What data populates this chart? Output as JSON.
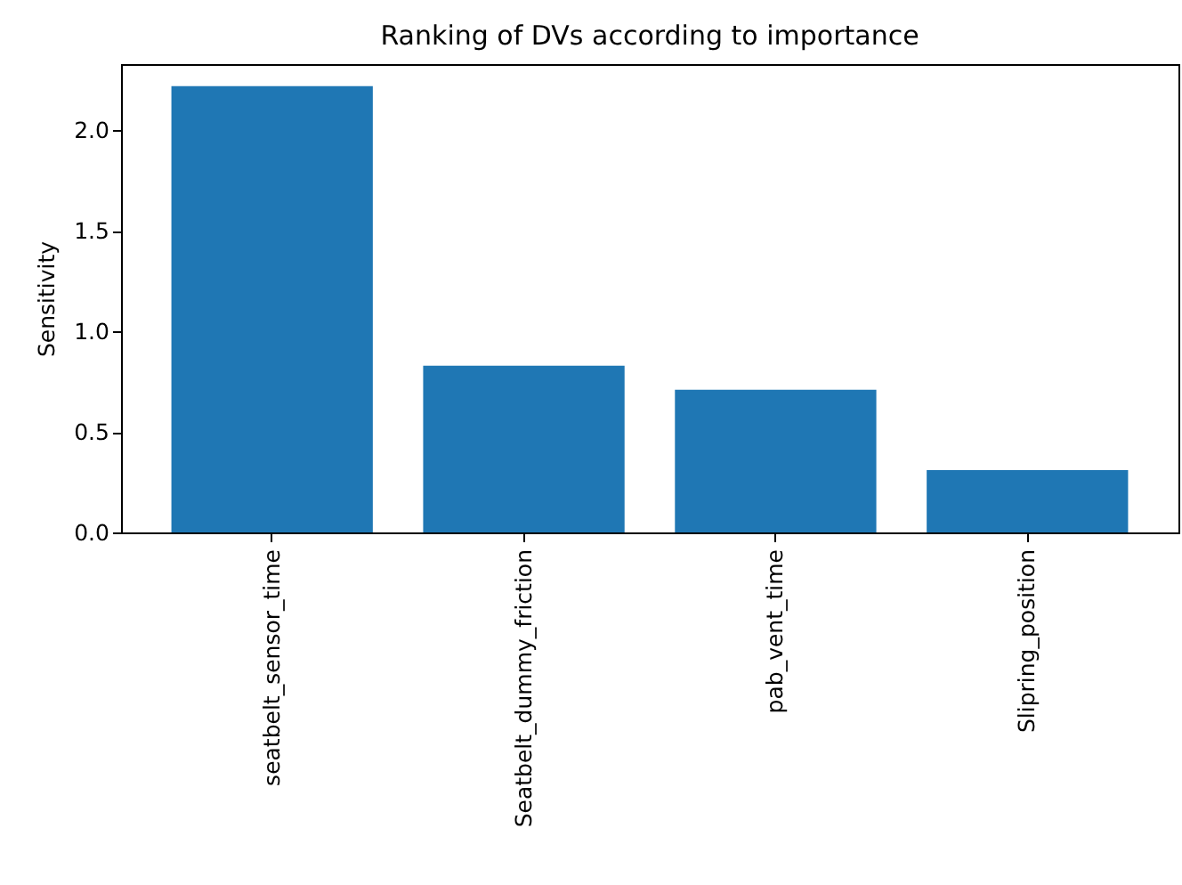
{
  "chart_data": {
    "type": "bar",
    "title": "Ranking of DVs according to importance",
    "ylabel": "Sensitivity",
    "categories": [
      "seatbelt_sensor_time",
      "Seatbelt_dummy_friction",
      "pab_vent_time",
      "Slipring_position"
    ],
    "values": [
      2.22,
      0.83,
      0.71,
      0.31
    ],
    "color": "#1f77b4",
    "ylim": [
      0,
      2.33
    ],
    "yticks": [
      {
        "value": 0,
        "label": "0.0"
      },
      {
        "value": 0.5,
        "label": "0.5"
      },
      {
        "value": 1,
        "label": "1.0"
      },
      {
        "value": 1.5,
        "label": "1.5"
      },
      {
        "value": 2,
        "label": "2.0"
      }
    ],
    "grid": false
  }
}
